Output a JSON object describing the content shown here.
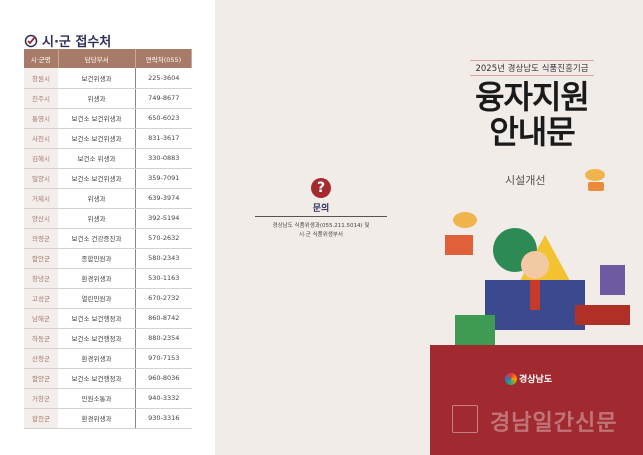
{
  "left": {
    "title": "시·군 접수처",
    "headers": [
      "시·군명",
      "담당부서",
      "연락처(055)"
    ],
    "rows": [
      [
        "창원시",
        "보건위생과",
        "225-3604"
      ],
      [
        "진주시",
        "위생과",
        "749-8677"
      ],
      [
        "통영시",
        "보건소 보건위생과",
        "650-6023"
      ],
      [
        "사천시",
        "보건소 보건위생과",
        "831-3617"
      ],
      [
        "김해시",
        "보건소 위생과",
        "330-0883"
      ],
      [
        "밀양시",
        "보건소 보건위생과",
        "359-7091"
      ],
      [
        "거제시",
        "위생과",
        "639-3974"
      ],
      [
        "양산시",
        "위생과",
        "392-5194"
      ],
      [
        "의령군",
        "보건소 건강증진과",
        "570-2632"
      ],
      [
        "함안군",
        "종합민원과",
        "580-2343"
      ],
      [
        "창녕군",
        "환경위생과",
        "530-1163"
      ],
      [
        "고성군",
        "열린민원과",
        "670-2732"
      ],
      [
        "남해군",
        "보건소 보건행정과",
        "860-8742"
      ],
      [
        "하동군",
        "보건소 보건행정과",
        "880-2354"
      ],
      [
        "산청군",
        "환경위생과",
        "970-7153"
      ],
      [
        "함양군",
        "보건소 보건행정과",
        "960-8036"
      ],
      [
        "거창군",
        "민원소통과",
        "940-3332"
      ],
      [
        "합천군",
        "환경위생과",
        "930-3316"
      ]
    ]
  },
  "cover": {
    "subtitle": "2025년 경상남도 식품진흥기금",
    "title_line1": "융자지원",
    "title_line2": "안내문",
    "category": "시설개선",
    "logo": "경상남도",
    "watermark": "경남일간신문"
  },
  "contact": {
    "label": "문의",
    "icon": "question-phone-icon",
    "text_line1": "경상남도 식품위생과(055.211.5014) 및",
    "text_line2": "시·군 식품위생부서"
  },
  "colors": {
    "accent": "#a02a30",
    "header": "#a87a68",
    "navy": "#2d2f5a"
  }
}
